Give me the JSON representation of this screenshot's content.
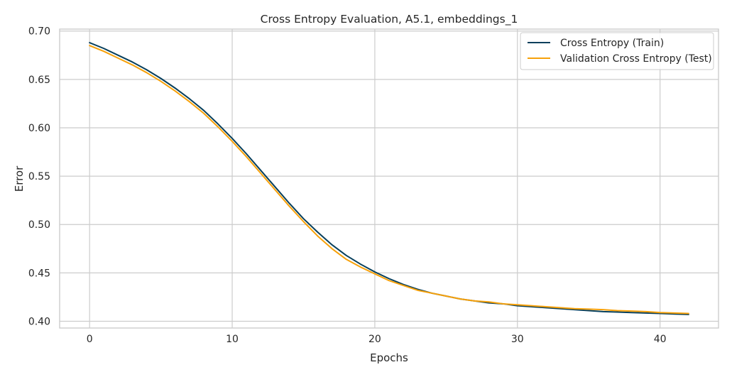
{
  "chart_data": {
    "type": "line",
    "title": "Cross Entropy Evaluation, A5.1, embeddings_1",
    "xlabel": "Epochs",
    "ylabel": "Error",
    "xlim": [
      -2.1,
      44.1
    ],
    "ylim": [
      0.393,
      0.702
    ],
    "xticks": [
      0,
      10,
      20,
      30,
      40
    ],
    "xtick_labels": [
      "0",
      "10",
      "20",
      "30",
      "40"
    ],
    "yticks": [
      0.4,
      0.45,
      0.5,
      0.55,
      0.6,
      0.65,
      0.7
    ],
    "ytick_labels": [
      "0.40",
      "0.45",
      "0.50",
      "0.55",
      "0.60",
      "0.65",
      "0.70"
    ],
    "grid": true,
    "legend_position": "top-right",
    "x": [
      0,
      1,
      2,
      3,
      4,
      5,
      6,
      7,
      8,
      9,
      10,
      11,
      12,
      13,
      14,
      15,
      16,
      17,
      18,
      19,
      20,
      21,
      22,
      23,
      24,
      25,
      26,
      27,
      28,
      29,
      30,
      31,
      32,
      33,
      34,
      35,
      36,
      37,
      38,
      39,
      40,
      41,
      42
    ],
    "series": [
      {
        "name": "Cross Entropy (Train)",
        "color": "#073f5c",
        "values": [
          0.688,
          0.682,
          0.675,
          0.668,
          0.66,
          0.651,
          0.641,
          0.63,
          0.618,
          0.604,
          0.589,
          0.573,
          0.556,
          0.539,
          0.522,
          0.506,
          0.492,
          0.479,
          0.468,
          0.459,
          0.451,
          0.444,
          0.438,
          0.433,
          0.429,
          0.426,
          0.423,
          0.421,
          0.419,
          0.418,
          0.416,
          0.415,
          0.414,
          0.413,
          0.412,
          0.411,
          0.41,
          0.4095,
          0.409,
          0.4085,
          0.408,
          0.4075,
          0.407
        ]
      },
      {
        "name": "Validation Cross Entropy (Test)",
        "color": "#f7a10a",
        "values": [
          0.685,
          0.679,
          0.672,
          0.665,
          0.657,
          0.648,
          0.638,
          0.627,
          0.615,
          0.601,
          0.586,
          0.57,
          0.553,
          0.536,
          0.519,
          0.503,
          0.488,
          0.475,
          0.464,
          0.456,
          0.449,
          0.442,
          0.437,
          0.432,
          0.429,
          0.426,
          0.423,
          0.421,
          0.42,
          0.418,
          0.417,
          0.416,
          0.415,
          0.414,
          0.413,
          0.4125,
          0.412,
          0.411,
          0.4105,
          0.41,
          0.409,
          0.4085,
          0.408
        ]
      }
    ]
  }
}
